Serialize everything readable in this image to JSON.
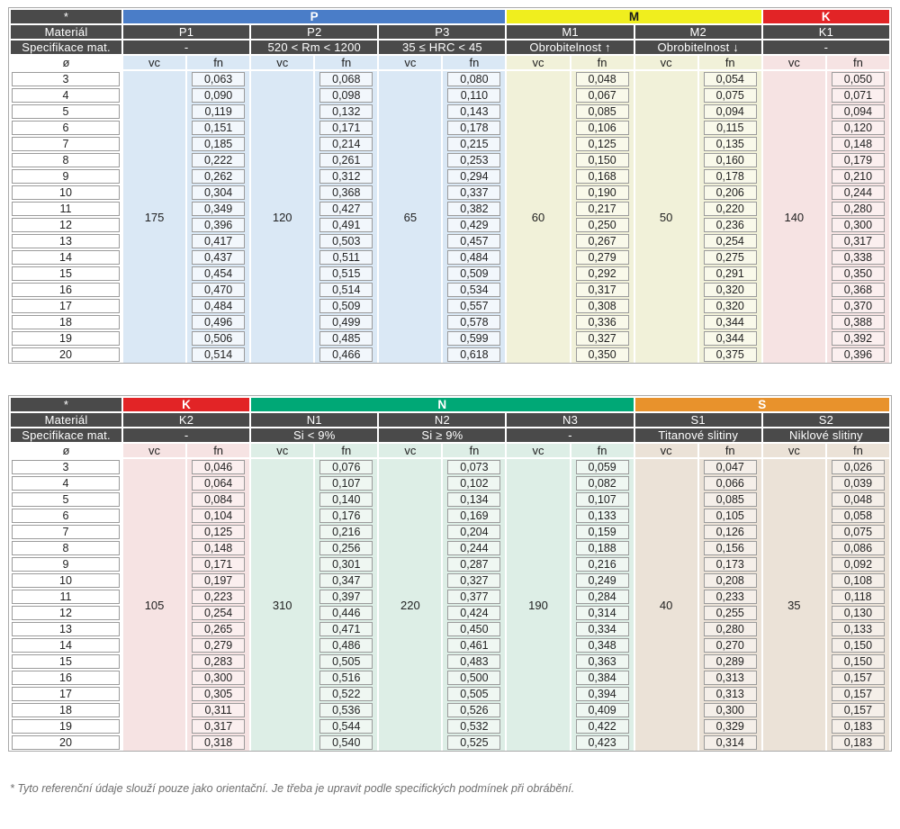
{
  "labels": {
    "star": "*",
    "material": "Materiál",
    "spec": "Specifikace mat.",
    "diameter": "ø",
    "vc": "vc",
    "fn": "fn"
  },
  "diameters": [
    "3",
    "4",
    "5",
    "6",
    "7",
    "8",
    "9",
    "10",
    "11",
    "12",
    "13",
    "14",
    "15",
    "16",
    "17",
    "18",
    "19",
    "20"
  ],
  "footnote": "* Tyto referenční údaje slouží pouze jako orientační. Je třeba je upravit podle specifických podmínek při obrábění.",
  "tables": [
    {
      "name": "table-1",
      "groups": [
        {
          "band": "P",
          "band_color": "#4a7dc8",
          "band_text": "#ffffff",
          "tint": "#dae8f5",
          "box_bg": "#f2f7fc",
          "columns": [
            {
              "id": "P1",
              "spec": "-",
              "vc": "175",
              "fn": [
                "0,063",
                "0,090",
                "0,119",
                "0,151",
                "0,185",
                "0,222",
                "0,262",
                "0,304",
                "0,349",
                "0,396",
                "0,417",
                "0,437",
                "0,454",
                "0,470",
                "0,484",
                "0,496",
                "0,506",
                "0,514"
              ]
            },
            {
              "id": "P2",
              "spec": "520 < Rm < 1200",
              "vc": "120",
              "fn": [
                "0,068",
                "0,098",
                "0,132",
                "0,171",
                "0,214",
                "0,261",
                "0,312",
                "0,368",
                "0,427",
                "0,491",
                "0,503",
                "0,511",
                "0,515",
                "0,514",
                "0,509",
                "0,499",
                "0,485",
                "0,466"
              ]
            },
            {
              "id": "P3",
              "spec": "35 ≤ HRC < 45",
              "vc": "65",
              "fn": [
                "0,080",
                "0,110",
                "0,143",
                "0,178",
                "0,215",
                "0,253",
                "0,294",
                "0,337",
                "0,382",
                "0,429",
                "0,457",
                "0,484",
                "0,509",
                "0,534",
                "0,557",
                "0,578",
                "0,599",
                "0,618"
              ]
            }
          ]
        },
        {
          "band": "M",
          "band_color": "#f0ee1e",
          "band_text": "#1a1a1a",
          "tint": "#f1f1d9",
          "box_bg": "#f9f9ea",
          "columns": [
            {
              "id": "M1",
              "spec": "Obrobitelnost ↑",
              "vc": "60",
              "fn": [
                "0,048",
                "0,067",
                "0,085",
                "0,106",
                "0,125",
                "0,150",
                "0,168",
                "0,190",
                "0,217",
                "0,250",
                "0,267",
                "0,279",
                "0,292",
                "0,317",
                "0,308",
                "0,336",
                "0,327",
                "0,350"
              ]
            },
            {
              "id": "M2",
              "spec": "Obrobitelnost ↓",
              "vc": "50",
              "fn": [
                "0,054",
                "0,075",
                "0,094",
                "0,115",
                "0,135",
                "0,160",
                "0,178",
                "0,206",
                "0,220",
                "0,236",
                "0,254",
                "0,275",
                "0,291",
                "0,320",
                "0,320",
                "0,344",
                "0,344",
                "0,375"
              ]
            }
          ]
        },
        {
          "band": "K",
          "band_color": "#e22426",
          "band_text": "#ffffff",
          "tint": "#f6e3e3",
          "box_bg": "#fbefef",
          "columns": [
            {
              "id": "K1",
              "spec": "-",
              "vc": "140",
              "fn": [
                "0,050",
                "0,071",
                "0,094",
                "0,120",
                "0,148",
                "0,179",
                "0,210",
                "0,244",
                "0,280",
                "0,300",
                "0,317",
                "0,338",
                "0,350",
                "0,368",
                "0,370",
                "0,388",
                "0,392",
                "0,396"
              ]
            }
          ]
        }
      ]
    },
    {
      "name": "table-2",
      "groups": [
        {
          "band": "K",
          "band_color": "#e22426",
          "band_text": "#ffffff",
          "tint": "#f6e3e3",
          "box_bg": "#fbefef",
          "columns": [
            {
              "id": "K2",
              "spec": "-",
              "vc": "105",
              "fn": [
                "0,046",
                "0,064",
                "0,084",
                "0,104",
                "0,125",
                "0,148",
                "0,171",
                "0,197",
                "0,223",
                "0,254",
                "0,265",
                "0,279",
                "0,283",
                "0,300",
                "0,305",
                "0,311",
                "0,317",
                "0,318"
              ]
            }
          ]
        },
        {
          "band": "N",
          "band_color": "#00a876",
          "band_text": "#ffffff",
          "tint": "#ddeee6",
          "box_bg": "#eff7f2",
          "columns": [
            {
              "id": "N1",
              "spec": "Si < 9%",
              "vc": "310",
              "fn": [
                "0,076",
                "0,107",
                "0,140",
                "0,176",
                "0,216",
                "0,256",
                "0,301",
                "0,347",
                "0,397",
                "0,446",
                "0,471",
                "0,486",
                "0,505",
                "0,516",
                "0,522",
                "0,536",
                "0,544",
                "0,540"
              ]
            },
            {
              "id": "N2",
              "spec": "Si ≥ 9%",
              "vc": "220",
              "fn": [
                "0,073",
                "0,102",
                "0,134",
                "0,169",
                "0,204",
                "0,244",
                "0,287",
                "0,327",
                "0,377",
                "0,424",
                "0,450",
                "0,461",
                "0,483",
                "0,500",
                "0,505",
                "0,526",
                "0,532",
                "0,525"
              ]
            },
            {
              "id": "N3",
              "spec": "-",
              "vc": "190",
              "fn": [
                "0,059",
                "0,082",
                "0,107",
                "0,133",
                "0,159",
                "0,188",
                "0,216",
                "0,249",
                "0,284",
                "0,314",
                "0,334",
                "0,348",
                "0,363",
                "0,384",
                "0,394",
                "0,409",
                "0,422",
                "0,423"
              ]
            }
          ]
        },
        {
          "band": "S",
          "band_color": "#e8922c",
          "band_text": "#ffffff",
          "tint": "#ebe2d7",
          "box_bg": "#f5efe9",
          "columns": [
            {
              "id": "S1",
              "spec": "Titanové slitiny",
              "vc": "40",
              "fn": [
                "0,047",
                "0,066",
                "0,085",
                "0,105",
                "0,126",
                "0,156",
                "0,173",
                "0,208",
                "0,233",
                "0,255",
                "0,280",
                "0,270",
                "0,289",
                "0,313",
                "0,313",
                "0,300",
                "0,329",
                "0,314"
              ]
            },
            {
              "id": "S2",
              "spec": "Niklové slitiny",
              "vc": "35",
              "fn": [
                "0,026",
                "0,039",
                "0,048",
                "0,058",
                "0,075",
                "0,086",
                "0,092",
                "0,108",
                "0,118",
                "0,130",
                "0,133",
                "0,150",
                "0,150",
                "0,157",
                "0,157",
                "0,157",
                "0,183",
                "0,183"
              ]
            }
          ]
        }
      ]
    }
  ]
}
